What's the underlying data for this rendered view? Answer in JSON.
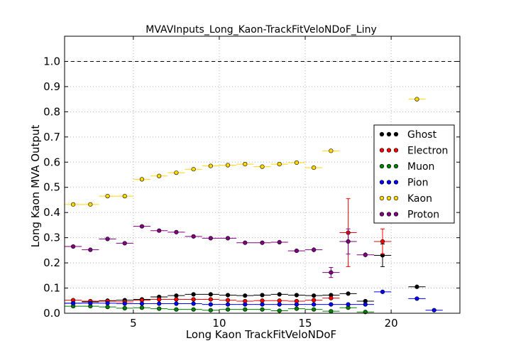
{
  "chart_data": {
    "type": "scatter",
    "title": "MVAVInputs_Long_Kaon-TrackFitVeloNDoF_Liny",
    "xlabel": "Long Kaon TrackFitVeloNDoF",
    "ylabel": "Long Kaon MVA Output",
    "xlim": [
      1,
      24
    ],
    "ylim": [
      0,
      1.1
    ],
    "xticks": [
      5,
      10,
      15,
      20
    ],
    "yticks": [
      "0.0",
      "0.1",
      "0.2",
      "0.3",
      "0.4",
      "0.5",
      "0.6",
      "0.7",
      "0.8",
      "0.9",
      "1.0"
    ],
    "reference_line_y": 1.0,
    "grid": true,
    "legend_position": "right",
    "x": [
      1.5,
      2.5,
      3.5,
      4.5,
      5.5,
      6.5,
      7.5,
      8.5,
      9.5,
      10.5,
      11.5,
      12.5,
      13.5,
      14.5,
      15.5,
      16.5,
      17.5,
      18.5,
      19.5,
      20.5,
      21.5,
      22.5
    ],
    "series": [
      {
        "name": "Ghost",
        "color": "#000000",
        "values": [
          0.04,
          0.045,
          0.05,
          0.052,
          0.055,
          0.065,
          0.07,
          0.075,
          0.075,
          0.072,
          0.07,
          0.072,
          0.075,
          0.072,
          0.07,
          0.072,
          0.078,
          0.048,
          0.23,
          null,
          0.105,
          null
        ],
        "errors": [
          0.003,
          0.003,
          0.003,
          0.003,
          0.003,
          0.003,
          0.003,
          0.003,
          0.003,
          0.003,
          0.003,
          0.003,
          0.003,
          0.003,
          0.003,
          0.004,
          0.005,
          0.008,
          0.045,
          null,
          0.006,
          null
        ]
      },
      {
        "name": "Electron",
        "color": "#ff0000",
        "values": [
          0.052,
          0.048,
          0.048,
          0.045,
          0.052,
          0.055,
          0.055,
          0.055,
          0.055,
          0.052,
          0.048,
          0.05,
          0.05,
          0.048,
          0.052,
          0.06,
          0.32,
          null,
          0.285,
          null,
          null,
          null
        ],
        "errors": [
          0.003,
          0.003,
          0.003,
          0.003,
          0.003,
          0.003,
          0.003,
          0.003,
          0.003,
          0.003,
          0.003,
          0.003,
          0.003,
          0.003,
          0.004,
          0.006,
          0.135,
          null,
          0.05,
          null,
          null,
          null
        ]
      },
      {
        "name": "Muon",
        "color": "#008000",
        "values": [
          0.028,
          0.028,
          0.025,
          0.02,
          0.022,
          0.018,
          0.015,
          0.015,
          0.012,
          0.015,
          0.015,
          0.015,
          0.01,
          0.018,
          0.015,
          0.008,
          0.022,
          0.005,
          null,
          null,
          null,
          null
        ],
        "errors": [
          0.003,
          0.003,
          0.003,
          0.003,
          0.003,
          0.003,
          0.003,
          0.003,
          0.003,
          0.003,
          0.003,
          0.003,
          0.003,
          0.003,
          0.003,
          0.003,
          0.004,
          0.003,
          null,
          null,
          null,
          null
        ]
      },
      {
        "name": "Pion",
        "color": "#0000ff",
        "values": [
          0.04,
          0.04,
          0.04,
          0.038,
          0.038,
          0.038,
          0.038,
          0.038,
          0.035,
          0.035,
          0.035,
          0.035,
          0.035,
          0.035,
          0.035,
          0.035,
          0.035,
          0.035,
          0.085,
          null,
          0.058,
          0.012
        ],
        "errors": [
          0.002,
          0.002,
          0.002,
          0.002,
          0.002,
          0.002,
          0.002,
          0.002,
          0.002,
          0.002,
          0.002,
          0.002,
          0.002,
          0.002,
          0.002,
          0.002,
          0.002,
          0.003,
          0.005,
          null,
          0.005,
          0.003
        ]
      },
      {
        "name": "Kaon",
        "color": "#ffd700",
        "values": [
          0.432,
          0.432,
          0.465,
          0.465,
          0.532,
          0.545,
          0.558,
          0.572,
          0.585,
          0.588,
          0.592,
          0.582,
          0.592,
          0.598,
          0.578,
          0.645,
          null,
          null,
          null,
          null,
          0.85,
          null
        ],
        "errors": [
          0.004,
          0.004,
          0.004,
          0.004,
          0.004,
          0.004,
          0.004,
          0.004,
          0.004,
          0.004,
          0.004,
          0.004,
          0.004,
          0.005,
          0.006,
          0.008,
          null,
          null,
          null,
          null,
          0.006,
          null
        ]
      },
      {
        "name": "Proton",
        "color": "#800080",
        "values": [
          0.265,
          0.252,
          0.295,
          0.278,
          0.345,
          0.328,
          0.322,
          0.305,
          0.298,
          0.298,
          0.28,
          0.28,
          0.282,
          0.248,
          0.252,
          0.162,
          0.285,
          0.232,
          null,
          null,
          null,
          null
        ],
        "errors": [
          0.004,
          0.004,
          0.004,
          0.004,
          0.004,
          0.004,
          0.004,
          0.004,
          0.004,
          0.004,
          0.004,
          0.004,
          0.004,
          0.005,
          0.01,
          0.02,
          0.05,
          0.01,
          null,
          null,
          null,
          null
        ]
      }
    ]
  }
}
